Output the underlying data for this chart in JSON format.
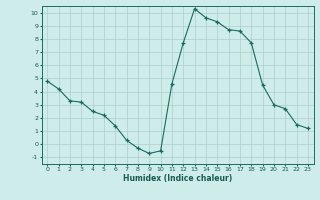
{
  "x": [
    0,
    1,
    2,
    3,
    4,
    5,
    6,
    7,
    8,
    9,
    10,
    11,
    12,
    13,
    14,
    15,
    16,
    17,
    18,
    19,
    20,
    21,
    22,
    23
  ],
  "y": [
    4.8,
    4.2,
    3.3,
    3.2,
    2.5,
    2.2,
    1.4,
    0.3,
    -0.3,
    -0.7,
    -0.5,
    4.6,
    7.7,
    10.3,
    9.6,
    9.3,
    8.7,
    8.6,
    7.7,
    4.5,
    3.0,
    2.7,
    1.5,
    1.2
  ],
  "line_color": "#1a6b5e",
  "marker": "+",
  "marker_size": 3,
  "bg_color": "#cdecea",
  "grid_color": "#b0cec8",
  "xlabel": "Humidex (Indice chaleur)",
  "xlim": [
    -0.5,
    23.5
  ],
  "ylim": [
    -1.5,
    10.5
  ],
  "yticks": [
    -1,
    0,
    1,
    2,
    3,
    4,
    5,
    6,
    7,
    8,
    9,
    10
  ],
  "xticks": [
    0,
    1,
    2,
    3,
    4,
    5,
    6,
    7,
    8,
    9,
    10,
    11,
    12,
    13,
    14,
    15,
    16,
    17,
    18,
    19,
    20,
    21,
    22,
    23
  ]
}
